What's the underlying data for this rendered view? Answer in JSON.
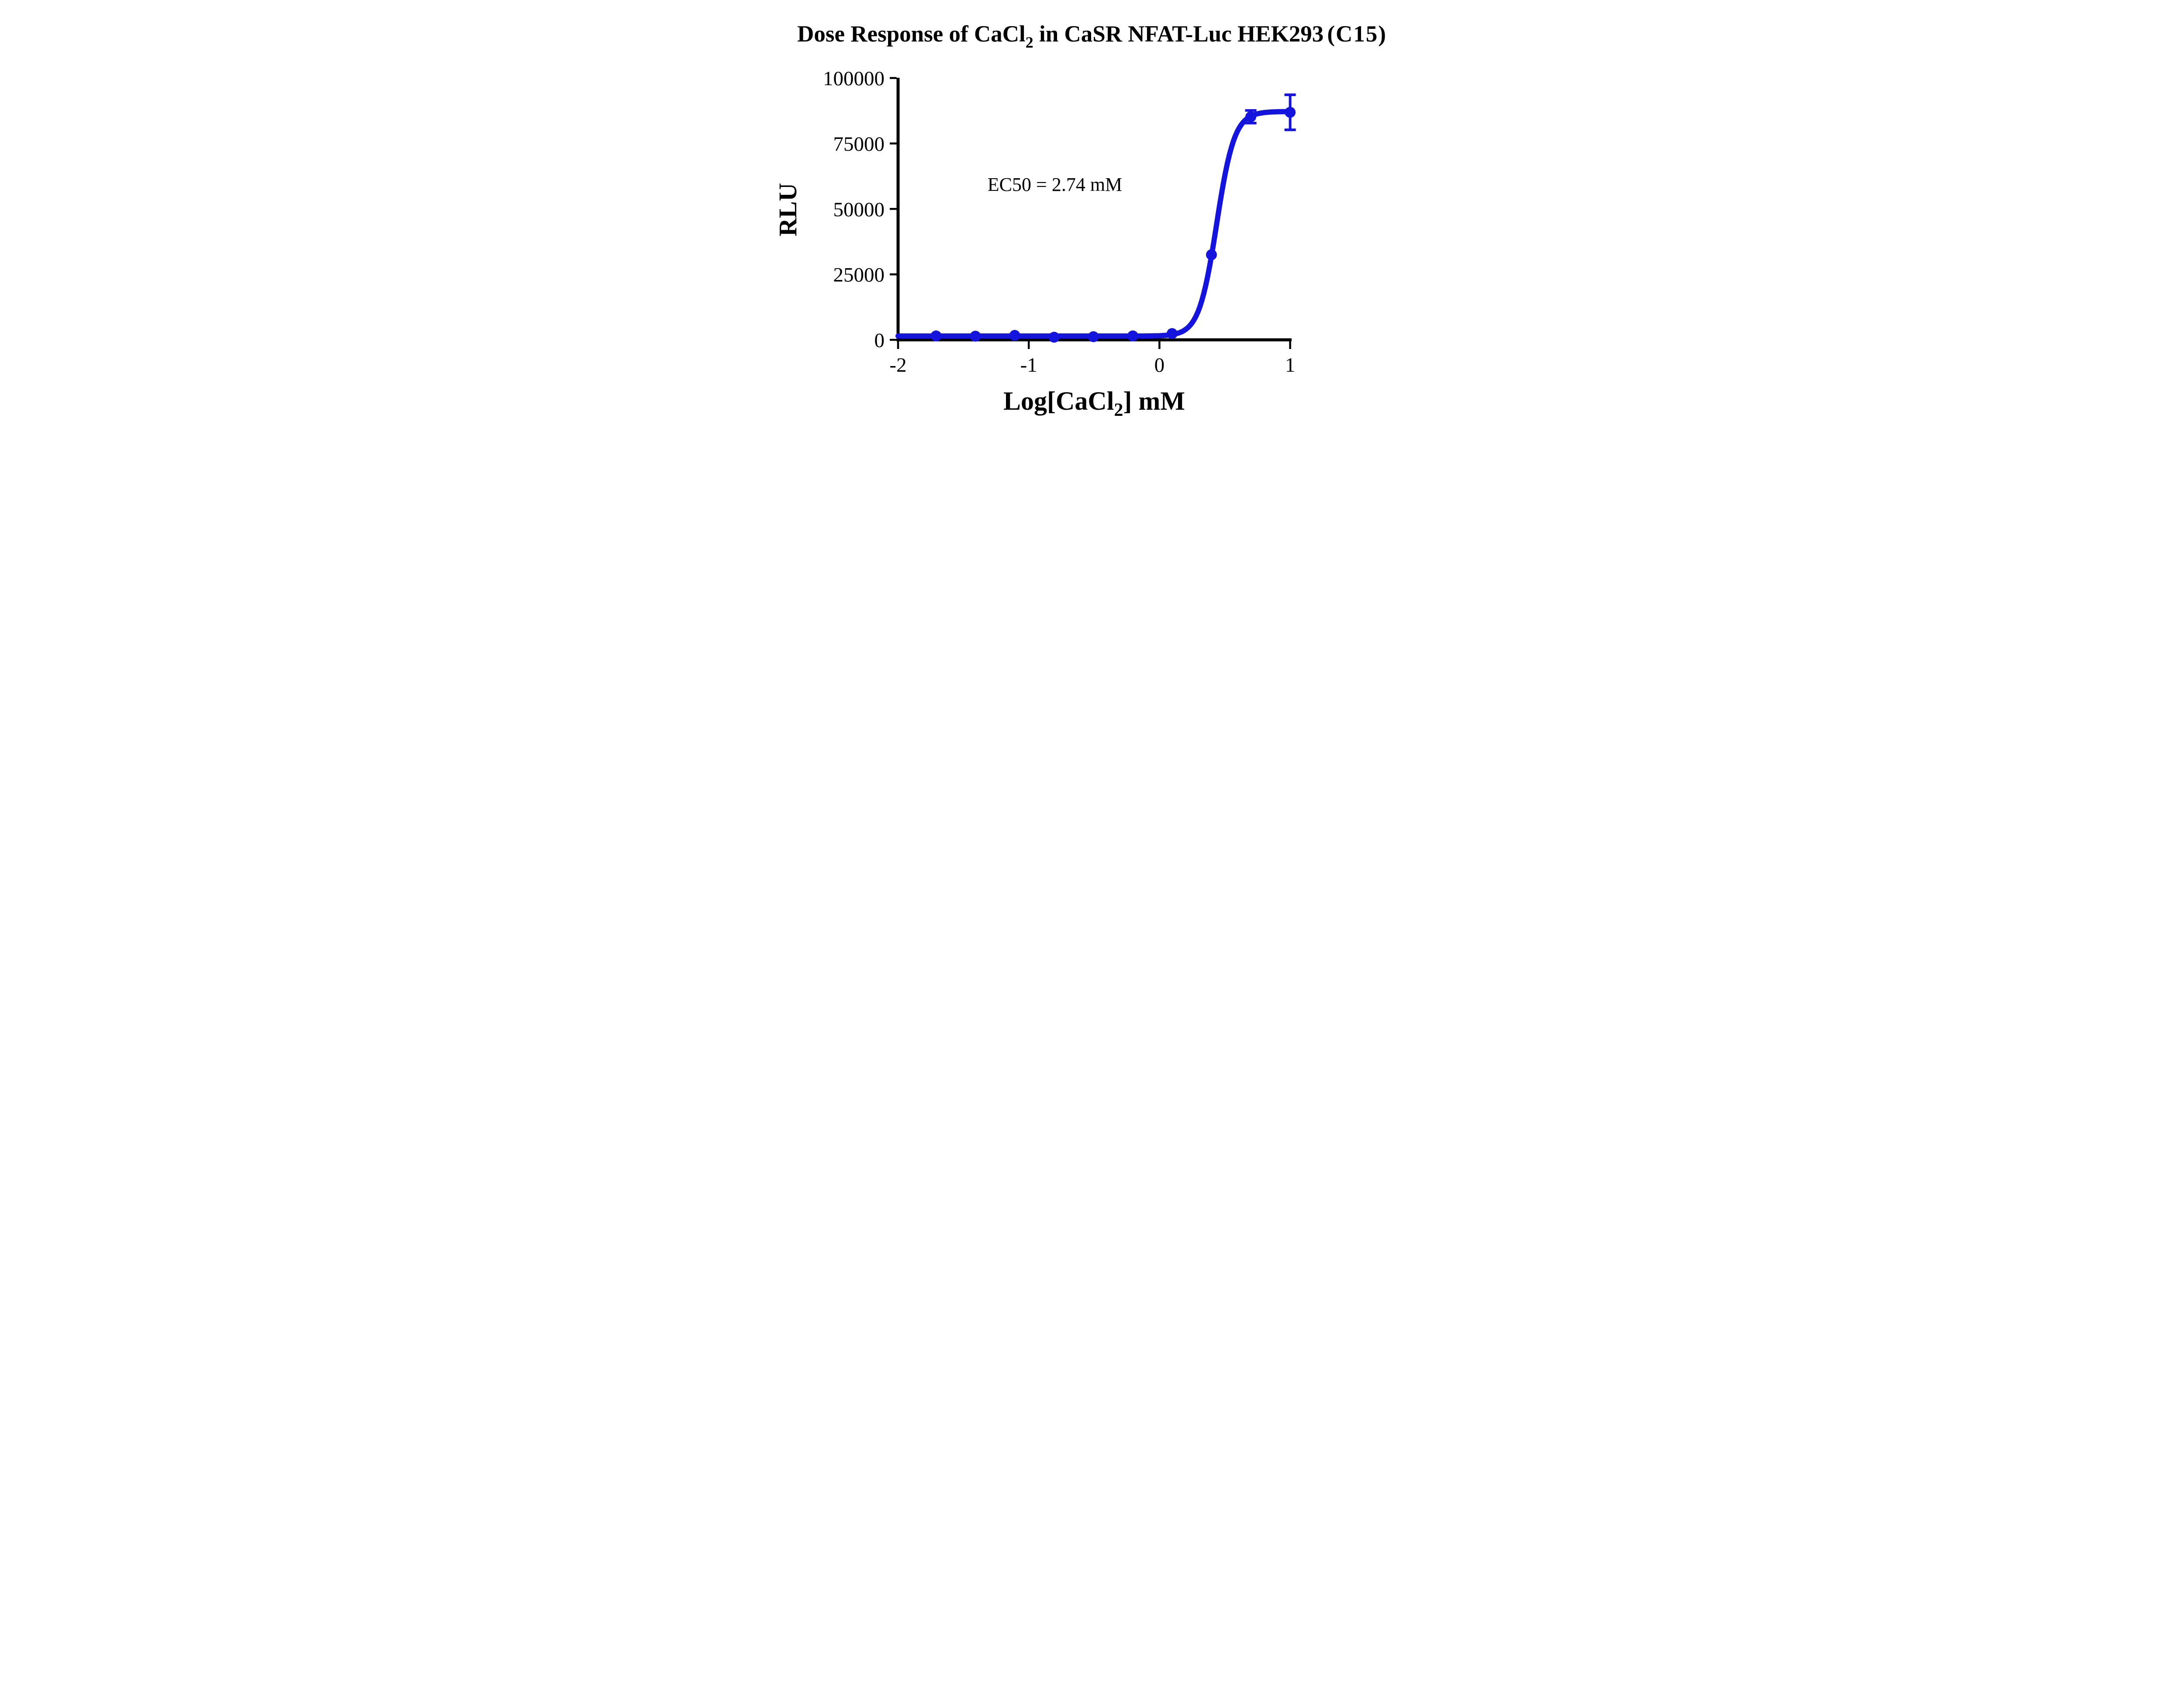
{
  "page": {
    "background": "#ffffff"
  },
  "title": {
    "full_text": "Dose Response of CaCl2 in CaSR NFAT-Luc HEK293（C15）",
    "pre_sub": "Dose Response of CaCl",
    "sub": "2",
    "post_sub": " in CaSR NFAT-Luc HEK293",
    "paren": "(C15)"
  },
  "annotation": {
    "ec50": "EC50 = 2.74 mM"
  },
  "axes": {
    "y_label": "RLU",
    "x_label_pre": "Log[CaCl",
    "x_label_sub": "2",
    "x_label_post": "] mM"
  },
  "chart_data": {
    "type": "scatter",
    "title": "Dose Response of CaCl2 in CaSR NFAT-Luc HEK293 (C15)",
    "xlabel": "Log[CaCl2] mM",
    "ylabel": "RLU",
    "x_ticks": [
      -2,
      -1,
      0,
      1
    ],
    "y_ticks": [
      0,
      25000,
      50000,
      75000,
      100000
    ],
    "xlim": [
      -2,
      1
    ],
    "ylim": [
      0,
      100000
    ],
    "grid": false,
    "legend": "none",
    "ec50_mM": 2.74,
    "series": [
      {
        "name": "CaCl2",
        "color": "#1414dd",
        "marker": "circle",
        "x_log_mM": [
          -1.709,
          -1.408,
          -1.107,
          -0.806,
          -0.505,
          -0.204,
          0.097,
          0.398,
          0.699,
          1.0
        ],
        "conc_mM": [
          0.0195,
          0.039,
          0.078,
          0.156,
          0.3125,
          0.625,
          1.25,
          2.5,
          5,
          10
        ],
        "y_rlu": [
          1500,
          1400,
          1700,
          1000,
          1200,
          1500,
          2400,
          32500,
          85200,
          86900
        ],
        "y_err_rlu": [
          0,
          0,
          0,
          0,
          0,
          0,
          0,
          0,
          2400,
          6700
        ]
      }
    ],
    "fit_curve": {
      "model": "4PL",
      "bottom": 1450,
      "top": 87200,
      "log_ec50": 0.438,
      "hill_slope": 6.4,
      "x_start": -2,
      "x_end": 1.0
    }
  },
  "colors": {
    "curve": "#1414dd",
    "axis": "#000000",
    "text": "#000000",
    "background": "#ffffff"
  }
}
